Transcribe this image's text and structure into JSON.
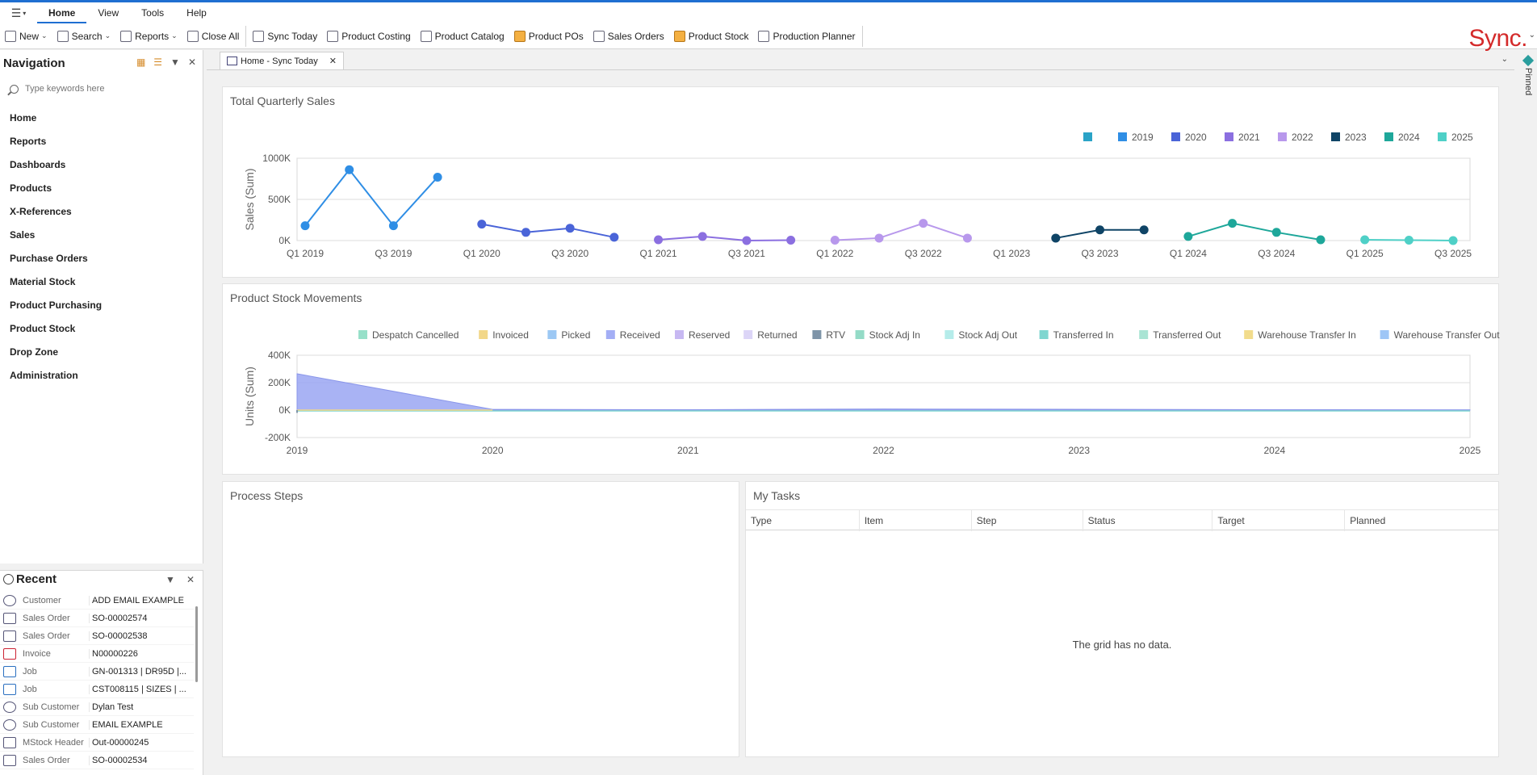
{
  "menu": {
    "items": [
      "Home",
      "View",
      "Tools",
      "Help"
    ],
    "active": "Home"
  },
  "toolbar": {
    "new_label": "New",
    "search_label": "Search",
    "reports_label": "Reports",
    "close_all_label": "Close All",
    "sync_today_label": "Sync Today",
    "product_costing_label": "Product Costing",
    "product_catalog_label": "Product Catalog",
    "product_pos_label": "Product POs",
    "sales_orders_label": "Sales Orders",
    "product_stock_label": "Product Stock",
    "production_planner_label": "Production Planner"
  },
  "logo": "Sync.",
  "navigation": {
    "title": "Navigation",
    "search_placeholder": "Type keywords here",
    "items": [
      "Home",
      "Reports",
      "Dashboards",
      "Products",
      "X-References",
      "Sales",
      "Purchase Orders",
      "Material Stock",
      "Product Purchasing",
      "Product Stock",
      "Drop Zone",
      "Administration"
    ]
  },
  "recent": {
    "title": "Recent",
    "rows": [
      {
        "type": "Customer",
        "value": "ADD EMAIL EXAMPLE"
      },
      {
        "type": "Sales Order",
        "value": "SO-00002574"
      },
      {
        "type": "Sales Order",
        "value": "SO-00002538"
      },
      {
        "type": "Invoice",
        "value": "N00000226"
      },
      {
        "type": "Job",
        "value": "GN-001313 | DR95D |..."
      },
      {
        "type": "Job",
        "value": "CST008115 | SIZES | ..."
      },
      {
        "type": "Sub Customer",
        "value": "Dylan Test"
      },
      {
        "type": "Sub Customer",
        "value": "EMAIL EXAMPLE"
      },
      {
        "type": "MStock Header",
        "value": "Out-00000245"
      },
      {
        "type": "Sales Order",
        "value": "SO-00002534"
      }
    ]
  },
  "doc_tab": {
    "label": "Home - Sync Today",
    "pinned_label": "Pinned"
  },
  "chart_data": [
    {
      "type": "line",
      "title": "Total Quarterly Sales",
      "ylabel": "Sales (Sum)",
      "ylim": [
        0,
        1000000
      ],
      "yticks": [
        "0K",
        "500K",
        "1000K"
      ],
      "xticks": [
        "Q1 2019",
        "Q3 2019",
        "Q1 2020",
        "Q3 2020",
        "Q1 2021",
        "Q3 2021",
        "Q1 2022",
        "Q3 2022",
        "Q1 2023",
        "Q3 2023",
        "Q1 2024",
        "Q3 2024",
        "Q1 2025",
        "Q3 2025"
      ],
      "legend": [
        "",
        "2019",
        "2020",
        "2021",
        "2022",
        "2023",
        "2024",
        "2025"
      ],
      "legend_colors": [
        "#2aa3c7",
        "#2f8ee5",
        "#4a64d8",
        "#8b6fe0",
        "#b898ec",
        "#0f4466",
        "#1ea79a",
        "#4fd0c7"
      ],
      "series": [
        {
          "name": "2019",
          "color": "#2f8ee5",
          "values": [
            180000,
            860000,
            180000,
            770000
          ]
        },
        {
          "name": "2020",
          "color": "#4a64d8",
          "values": [
            200000,
            100000,
            150000,
            40000
          ]
        },
        {
          "name": "2021",
          "color": "#8b6fe0",
          "values": [
            10000,
            50000,
            0,
            5000
          ]
        },
        {
          "name": "2022",
          "color": "#b898ec",
          "values": [
            5000,
            30000,
            210000,
            30000
          ]
        },
        {
          "name": "2023",
          "color": "#0f4466",
          "values": [
            null,
            30000,
            130000,
            130000
          ]
        },
        {
          "name": "2024",
          "color": "#1ea79a",
          "values": [
            50000,
            210000,
            100000,
            10000
          ]
        },
        {
          "name": "2025",
          "color": "#4fd0c7",
          "values": [
            10000,
            5000,
            0
          ]
        }
      ]
    },
    {
      "type": "area",
      "title": "Product Stock Movements",
      "ylabel": "Units (Sum)",
      "ylim": [
        -200000,
        400000
      ],
      "yticks": [
        "-200K",
        "0K",
        "200K",
        "400K"
      ],
      "xticks": [
        "2019",
        "2020",
        "2021",
        "2022",
        "2023",
        "2024",
        "2025"
      ],
      "legend": [
        "Despatch Cancelled",
        "Invoiced",
        "Picked",
        "Received",
        "Reserved",
        "Returned",
        "RTV",
        "Stock Adj In",
        "Stock Adj Out",
        "Transferred In",
        "Transferred Out",
        "Warehouse Transfer In",
        "Warehouse Transfer Out"
      ],
      "legend_colors": [
        "#97e0c9",
        "#f2d788",
        "#9cc8f4",
        "#a3aef5",
        "#c7b8f2",
        "#dcd5f7",
        "#7e94a8",
        "#94dbc7",
        "#b5ecea",
        "#7fd6d0",
        "#a9e4d4",
        "#f2dc8c",
        "#9ec6f6"
      ],
      "received": {
        "color": "#9aa6f2",
        "x": [
          2019,
          2020,
          2021,
          2022,
          2023,
          2024,
          2025
        ],
        "values": [
          265000,
          5000,
          3000,
          8000,
          6000,
          3000,
          2000
        ]
      }
    }
  ],
  "process_steps": {
    "title": "Process Steps"
  },
  "my_tasks": {
    "title": "My Tasks",
    "columns": [
      "Type",
      "Item",
      "Step",
      "Status",
      "Target",
      "Planned"
    ],
    "empty_text": "The grid has no data."
  }
}
